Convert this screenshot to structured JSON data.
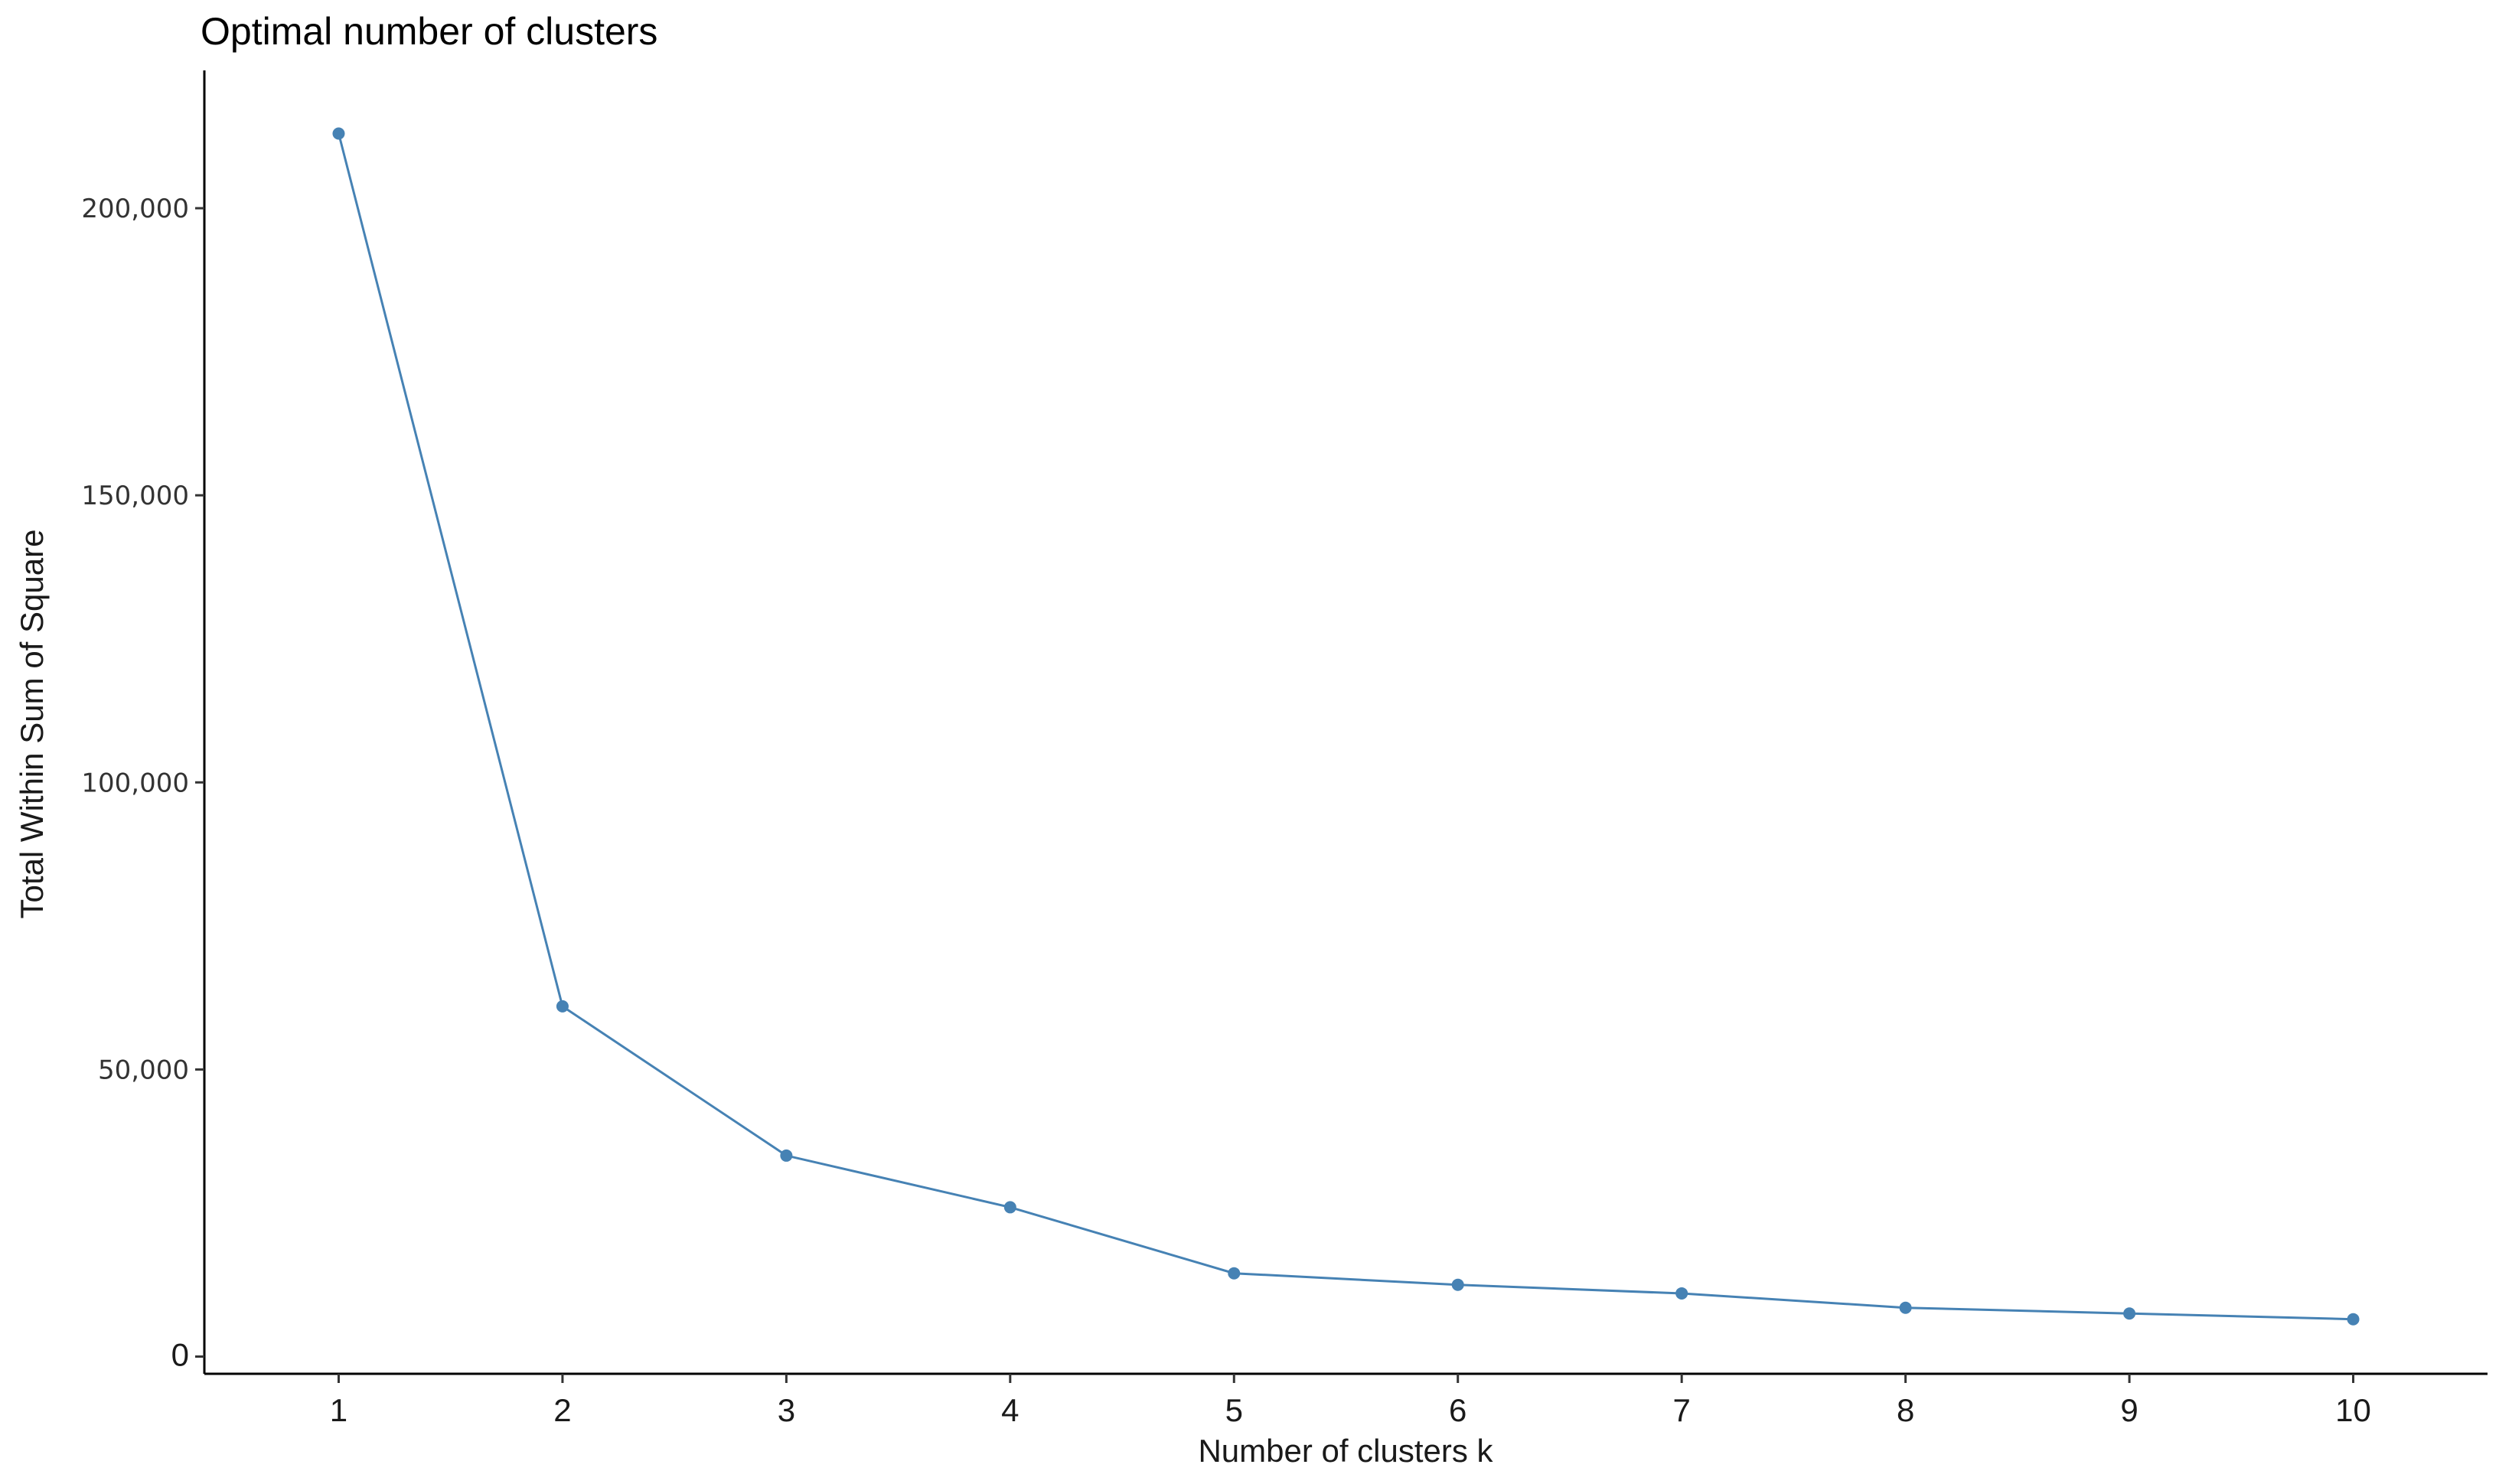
{
  "chart_data": {
    "type": "line",
    "title": "Optimal number of clusters",
    "xlabel": "Number of clusters k",
    "ylabel": "Total Within Sum of Square",
    "x": [
      1,
      2,
      3,
      4,
      5,
      6,
      7,
      8,
      9,
      10
    ],
    "xtick_labels": [
      "1",
      "2",
      "3",
      "4",
      "5",
      "6",
      "7",
      "8",
      "9",
      "10"
    ],
    "y_ticks": [
      0,
      50000,
      100000,
      150000,
      200000
    ],
    "ytick_labels": [
      "0",
      "50,000",
      "100,000",
      "150,000",
      "200,000"
    ],
    "ylim": [
      -3000,
      224000
    ],
    "xlim": [
      0.4,
      10.6
    ],
    "series": [
      {
        "values": [
          213000,
          61000,
          35000,
          26000,
          14500,
          12500,
          11000,
          8500,
          7500,
          6500
        ]
      }
    ],
    "line_color": "#4682b4",
    "grid": false,
    "legend": "none"
  }
}
